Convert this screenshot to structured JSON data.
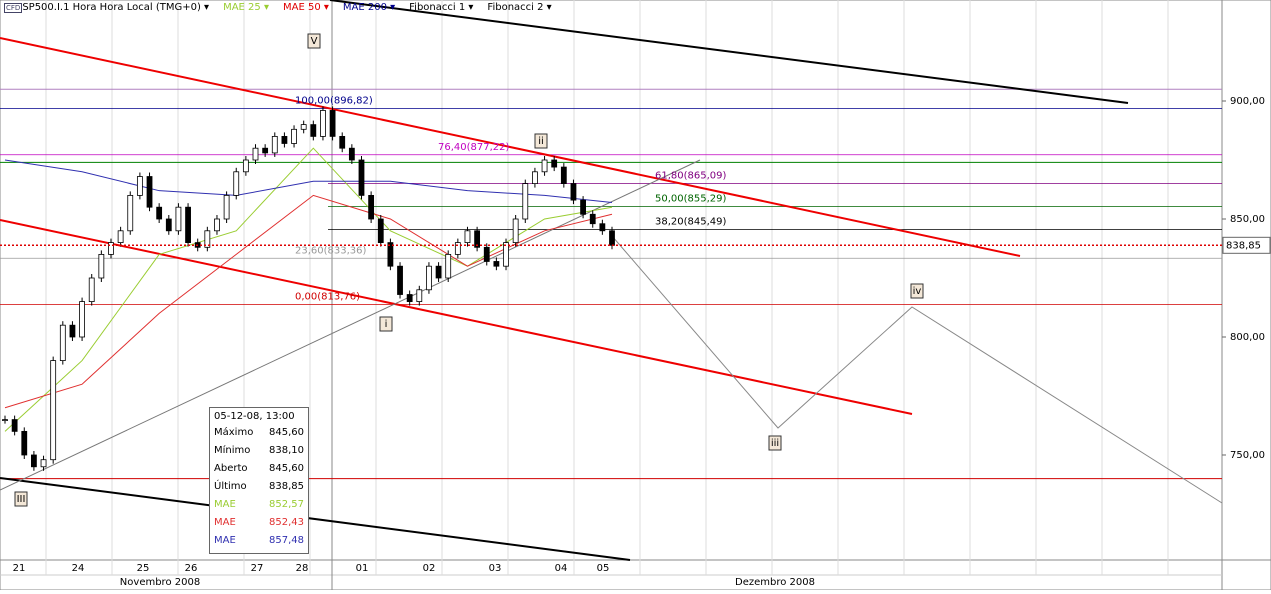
{
  "toolbar": {
    "symbol": "SP500.I.1 Hora Hora Local (TMG+0)",
    "items": [
      {
        "label": "MAE 25",
        "color": "#9acd32"
      },
      {
        "label": "MAE 50",
        "color": "#e00000"
      },
      {
        "label": "MAE 200",
        "color": "#00008b"
      },
      {
        "label": "Fibonacci 1",
        "color": "#000000"
      },
      {
        "label": "Fibonacci 2",
        "color": "#000000"
      }
    ]
  },
  "chart_data": {
    "type": "candlestick",
    "ylim": [
      705.5,
      942.8
    ],
    "yticks": [
      {
        "value": 900,
        "label": "900,00"
      },
      {
        "value": 850,
        "label": "850,00"
      },
      {
        "value": 800,
        "label": "800,00"
      },
      {
        "value": 750,
        "label": "750,00"
      }
    ],
    "last_price": {
      "value": 838.85,
      "label": "838,85"
    },
    "days": [
      "21",
      "24",
      "25",
      "26",
      "27",
      "28",
      "01",
      "02",
      "03",
      "04",
      "05"
    ],
    "months": [
      "Novembro 2008",
      "Dezembro 2008"
    ],
    "closes": [
      765,
      760,
      750,
      745,
      748,
      790,
      805,
      800,
      815,
      825,
      835,
      840,
      845,
      860,
      868,
      855,
      850,
      845,
      855,
      840,
      838,
      845,
      850,
      860,
      870,
      875,
      880,
      878,
      885,
      882,
      888,
      890,
      885,
      896,
      885,
      880,
      875,
      860,
      850,
      840,
      830,
      818,
      815,
      820,
      830,
      825,
      835,
      840,
      845,
      838,
      832,
      830,
      840,
      850,
      865,
      870,
      875,
      872,
      865,
      858,
      852,
      848,
      845,
      838.85
    ],
    "series": [
      {
        "name": "MAE 25",
        "color": "#9acd32",
        "x": [
          0,
          8,
          16,
          24,
          32,
          40,
          48,
          56,
          63
        ],
        "values": [
          760,
          790,
          835,
          845,
          880,
          845,
          830,
          850,
          855
        ]
      },
      {
        "name": "MAE 50",
        "color": "#e03030",
        "x": [
          0,
          8,
          16,
          24,
          32,
          40,
          48,
          56,
          63
        ],
        "values": [
          770,
          780,
          810,
          835,
          860,
          850,
          830,
          845,
          852
        ]
      },
      {
        "name": "MAE 200",
        "color": "#3030b0",
        "x": [
          0,
          8,
          16,
          24,
          32,
          40,
          48,
          56,
          63
        ],
        "values": [
          875,
          870,
          862,
          860,
          866,
          866,
          862,
          860,
          857
        ]
      }
    ],
    "fib_levels": [
      {
        "value": 896.82,
        "label": "100,00(896,82)",
        "color": "#00008b"
      },
      {
        "value": 877.22,
        "label": "76,40(877,22)",
        "color": "#c000c0"
      },
      {
        "value": 865.09,
        "label": "61,80(865,09)",
        "color": "#800080"
      },
      {
        "value": 855.29,
        "label": "50,00(855,29)",
        "color": "#006400"
      },
      {
        "value": 845.49,
        "label": "38,20(845,49)",
        "color": "#000000"
      },
      {
        "value": 833.36,
        "label": "23,60(833,36)",
        "color": "#999999"
      },
      {
        "value": 813.76,
        "label": "0,00(813,76)",
        "color": "#d00000"
      }
    ],
    "lines": [
      {
        "value": 905,
        "color": "#b080c0"
      },
      {
        "value": 874,
        "color": "#008000"
      },
      {
        "value": 740,
        "color": "#d00000"
      }
    ],
    "waves": [
      "V",
      "ii",
      "i",
      "iii",
      "iv",
      "III"
    ]
  },
  "info_panel": {
    "title": "05-12-08, 13:00",
    "rows": [
      [
        "Máximo",
        "845,60"
      ],
      [
        "Mínimo",
        "838,10"
      ],
      [
        "Aberto",
        "845,60"
      ],
      [
        "Último",
        "838,85"
      ],
      [
        "MAE",
        "852,57"
      ],
      [
        "MAE",
        "852,43"
      ],
      [
        "MAE",
        "857,48"
      ]
    ]
  }
}
